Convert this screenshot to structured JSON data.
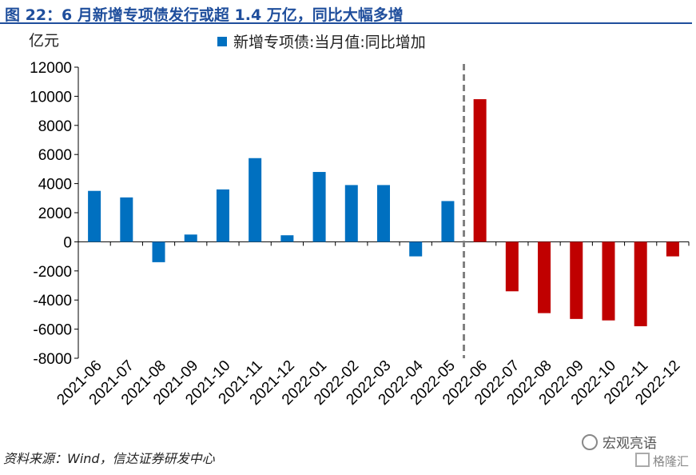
{
  "header": {
    "title": "图 22：6 月新增专项债发行或超 1.4 万亿，同比大幅多增",
    "unit": "亿元"
  },
  "footer": {
    "source": "资料来源：Wind，信达证券研发中心",
    "watermark_primary": "宏观亮语",
    "watermark_secondary": "格隆汇"
  },
  "colors": {
    "actual": "#0070c0",
    "forecast": "#c00000",
    "divider": "#808080",
    "title": "#1f4e9c"
  },
  "chart_data": {
    "type": "bar",
    "title": "",
    "ylabel": "亿元",
    "xlabel": "",
    "ylim": [
      -8000,
      12000
    ],
    "yticks": [
      12000,
      10000,
      8000,
      6000,
      4000,
      2000,
      0,
      -2000,
      -4000,
      -6000,
      -8000
    ],
    "grid": false,
    "legend_position": "top",
    "categories": [
      "2021-06",
      "2021-07",
      "2021-08",
      "2021-09",
      "2021-10",
      "2021-11",
      "2021-12",
      "2022-01",
      "2022-02",
      "2022-03",
      "2022-04",
      "2022-05",
      "2022-06",
      "2022-07",
      "2022-08",
      "2022-09",
      "2022-10",
      "2022-11",
      "2022-12"
    ],
    "series": [
      {
        "name": "新增专项债:当月值:同比增加",
        "values": [
          3500,
          3050,
          -1400,
          500,
          3600,
          5750,
          450,
          4800,
          3900,
          3900,
          -1000,
          2800,
          9800,
          -3400,
          -4900,
          -5300,
          -5400,
          -5800,
          -1000
        ]
      }
    ],
    "divider_after_index": 11,
    "forecast_start_index": 12
  }
}
